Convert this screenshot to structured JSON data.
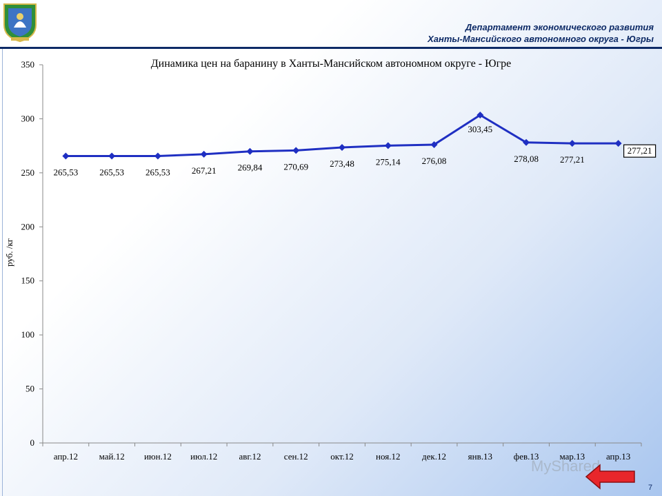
{
  "header": {
    "department_line1": "Департамент экономического развития",
    "department_line2": "Ханты-Мансийского автономного округа - Югры"
  },
  "colors": {
    "series": "#1f2fc2",
    "header_text": "#0d2a66",
    "back_arrow": "#e8262b"
  },
  "icons": {
    "emblem": "coat-of-arms-icon",
    "back": "back-arrow-icon"
  },
  "watermark": "MyShared",
  "page_number": "7",
  "chart_data": {
    "type": "line",
    "title": "Динамика цен на баранину в Ханты-Мансийском автономном округе - Югре",
    "ylabel": "руб. /кг",
    "xlabel": "",
    "ylim": [
      0,
      350
    ],
    "yticks": [
      0,
      50,
      100,
      150,
      200,
      250,
      300,
      350
    ],
    "grid": false,
    "categories": [
      "апр.12",
      "май.12",
      "июн.12",
      "июл.12",
      "авг.12",
      "сен.12",
      "окт.12",
      "ноя.12",
      "дек.12",
      "янв.13",
      "фев.13",
      "мар.13",
      "апр.13"
    ],
    "series": [
      {
        "values": [
          265.53,
          265.53,
          265.53,
          267.21,
          269.84,
          270.69,
          273.48,
          275.14,
          276.08,
          303.45,
          278.08,
          277.21,
          277.21
        ],
        "labels": [
          "265,53",
          "265,53",
          "265,53",
          "267,21",
          "269,84",
          "270,69",
          "273,48",
          "275,14",
          "276,08",
          "303,45",
          "278,08",
          "277,21",
          "277,21"
        ]
      }
    ]
  }
}
